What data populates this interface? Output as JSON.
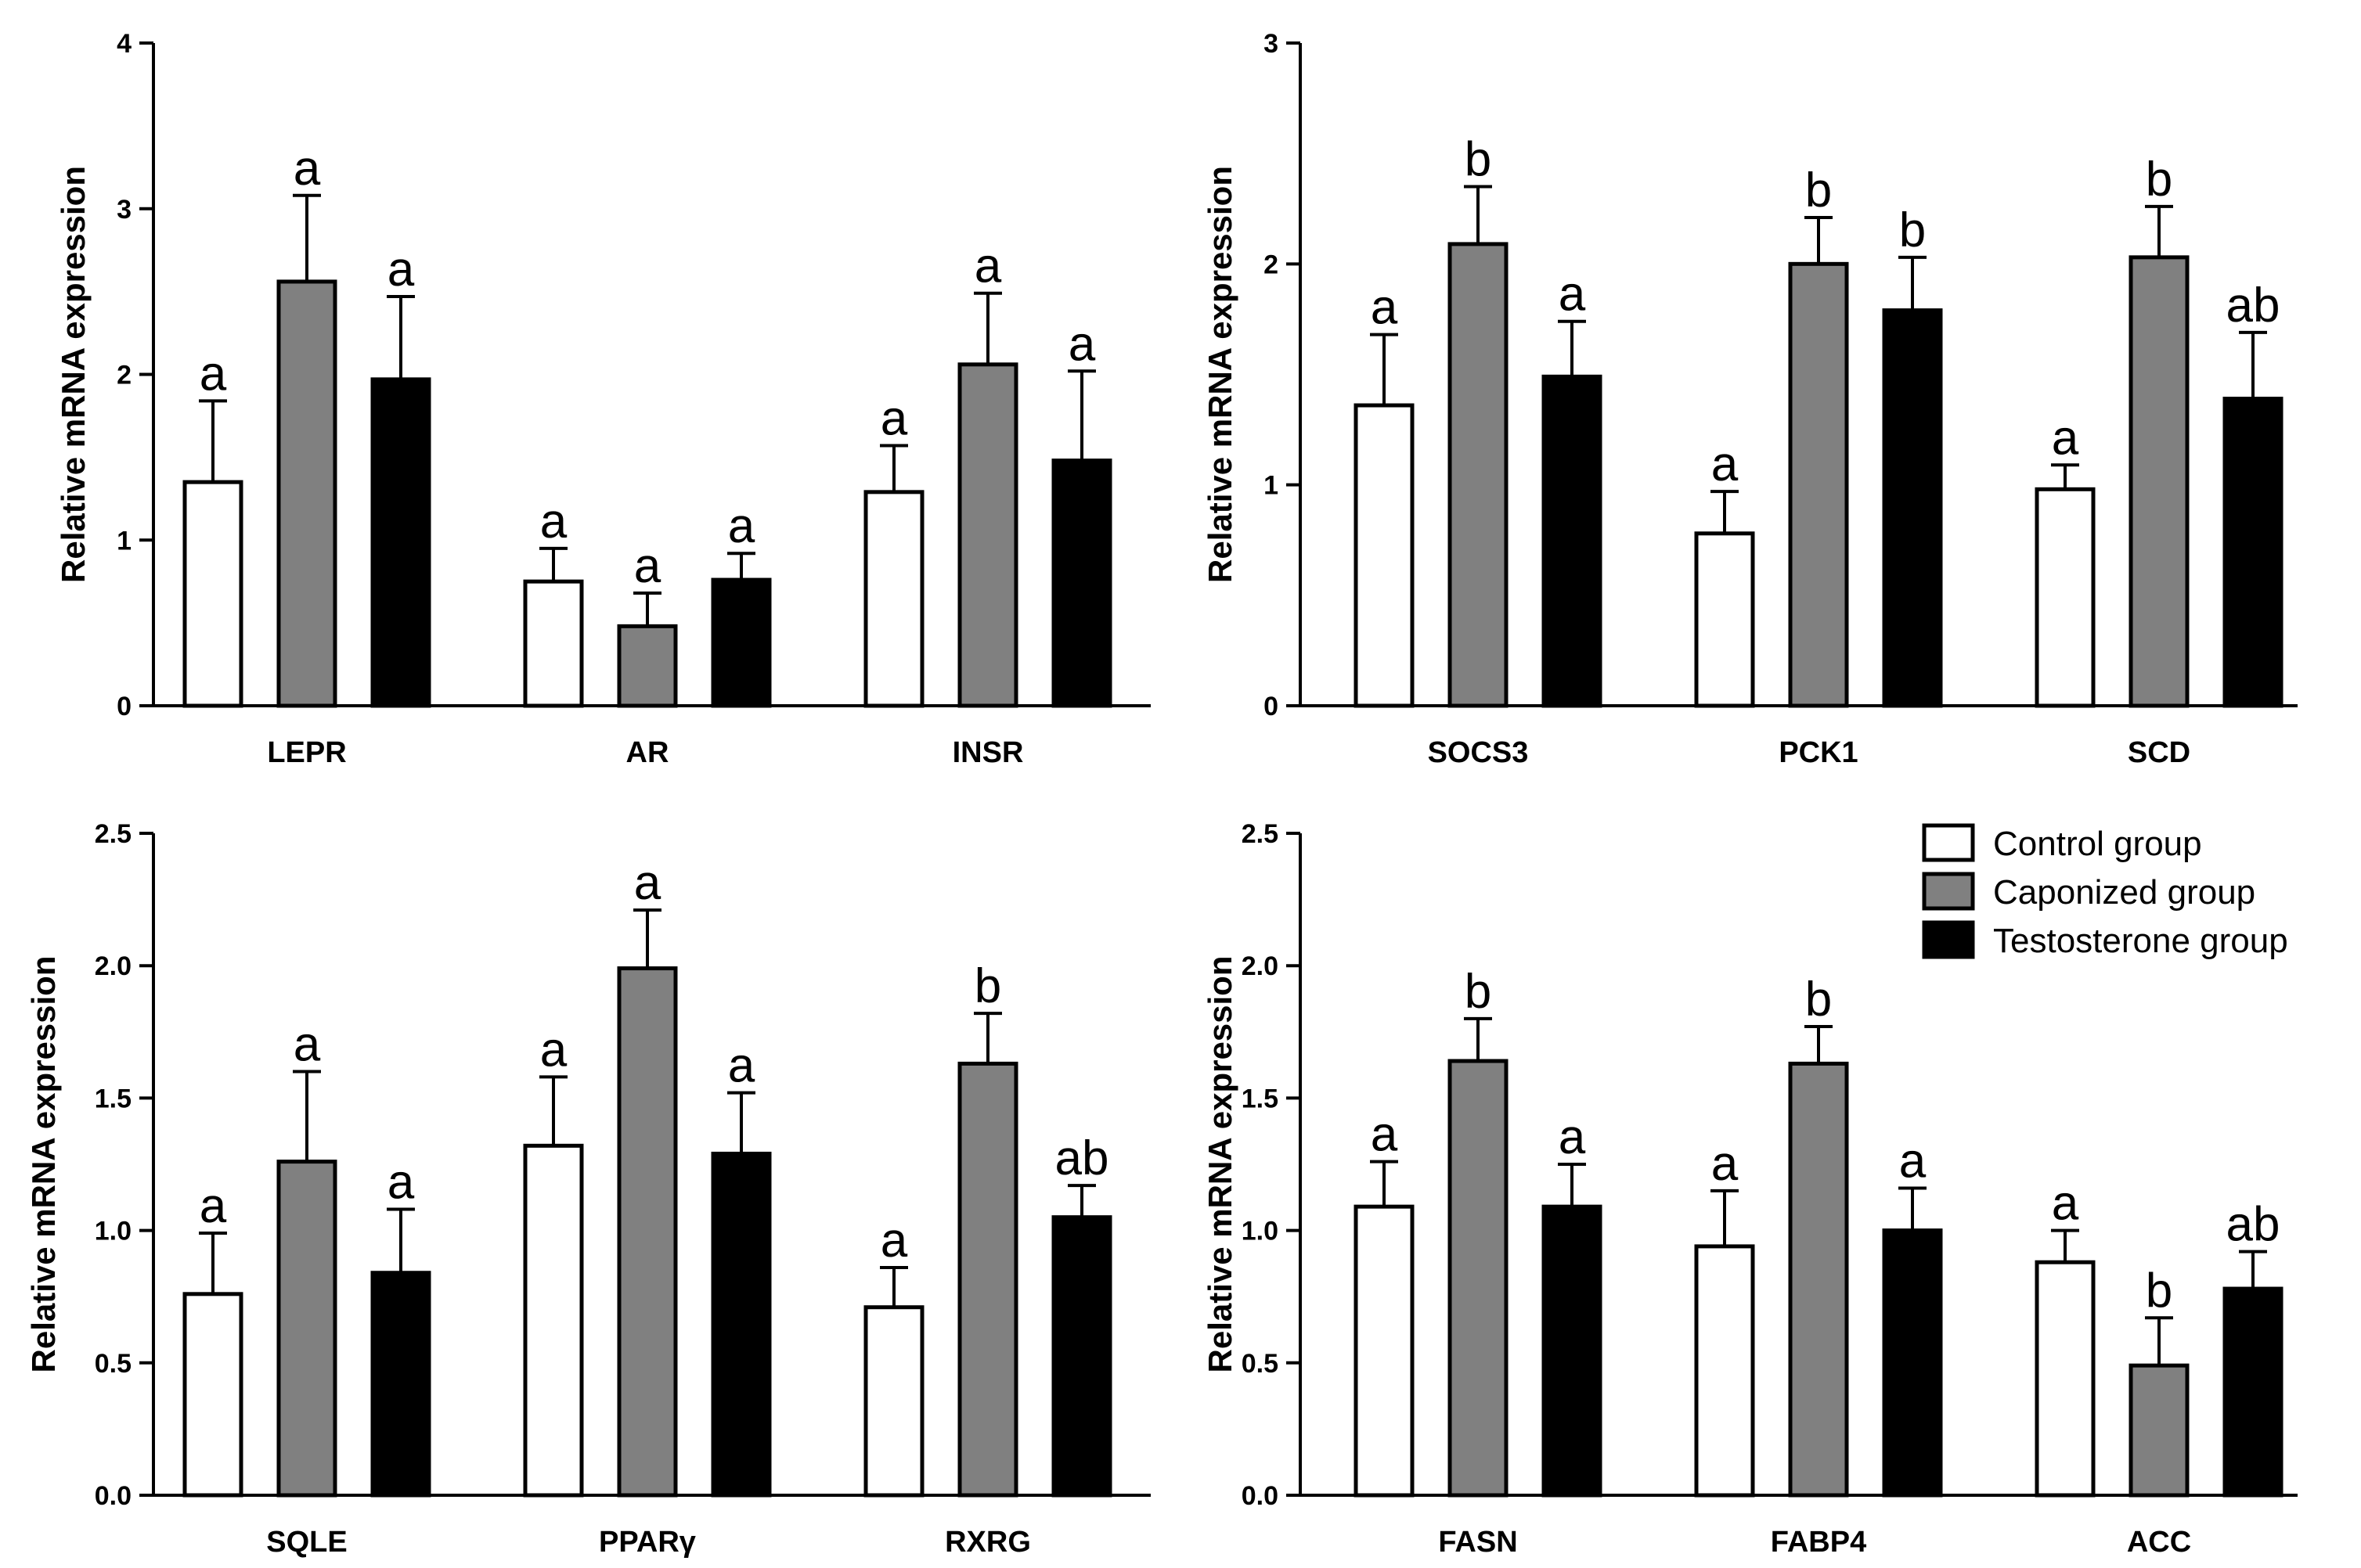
{
  "chart_data": [
    {
      "type": "bar",
      "ylabel": "Relative mRNA expression",
      "ylim": [
        0,
        4
      ],
      "yticks": [
        "0",
        "1",
        "2",
        "3",
        "4"
      ],
      "categories": [
        "LEPR",
        "AR",
        "INSR"
      ],
      "series": [
        {
          "name": "Control group",
          "values": [
            1.35,
            0.75,
            1.29
          ],
          "errors": [
            0.49,
            0.2,
            0.28
          ],
          "letters": [
            "a",
            "a",
            "a"
          ]
        },
        {
          "name": "Caponized group",
          "values": [
            2.56,
            0.48,
            2.06
          ],
          "errors": [
            0.52,
            0.2,
            0.43
          ],
          "letters": [
            "a",
            "a",
            "a"
          ]
        },
        {
          "name": "Testosterone group",
          "values": [
            1.97,
            0.76,
            1.48
          ],
          "errors": [
            0.5,
            0.16,
            0.54
          ],
          "letters": [
            "a",
            "a",
            "a"
          ]
        }
      ]
    },
    {
      "type": "bar",
      "ylabel": "Relative mRNA expression",
      "ylim": [
        0,
        3
      ],
      "yticks": [
        "0",
        "1",
        "2",
        "3"
      ],
      "categories": [
        "SOCS3",
        "PCK1",
        "SCD"
      ],
      "series": [
        {
          "name": "Control group",
          "values": [
            1.36,
            0.78,
            0.98
          ],
          "errors": [
            0.32,
            0.19,
            0.11
          ],
          "letters": [
            "a",
            "a",
            "a"
          ]
        },
        {
          "name": "Caponized group",
          "values": [
            2.09,
            2.0,
            2.03
          ],
          "errors": [
            0.26,
            0.21,
            0.23
          ],
          "letters": [
            "b",
            "b",
            "b"
          ]
        },
        {
          "name": "Testosterone group",
          "values": [
            1.49,
            1.79,
            1.39
          ],
          "errors": [
            0.25,
            0.24,
            0.3
          ],
          "letters": [
            "a",
            "b",
            "ab"
          ]
        }
      ]
    },
    {
      "type": "bar",
      "ylabel": "Relative mRNA expression",
      "ylim": [
        0,
        2.5
      ],
      "yticks": [
        "0.0",
        "0.5",
        "1.0",
        "1.5",
        "2.0",
        "2.5"
      ],
      "categories": [
        "SQLE",
        "PPARγ",
        "RXRG"
      ],
      "series": [
        {
          "name": "Control group",
          "values": [
            0.76,
            1.32,
            0.71
          ],
          "errors": [
            0.23,
            0.26,
            0.15
          ],
          "letters": [
            "a",
            "a",
            "a"
          ]
        },
        {
          "name": "Caponized group",
          "values": [
            1.26,
            1.99,
            1.63
          ],
          "errors": [
            0.34,
            0.22,
            0.19
          ],
          "letters": [
            "a",
            "a",
            "b"
          ]
        },
        {
          "name": "Testosterone group",
          "values": [
            0.84,
            1.29,
            1.05
          ],
          "errors": [
            0.24,
            0.23,
            0.12
          ],
          "letters": [
            "a",
            "a",
            "ab"
          ]
        }
      ]
    },
    {
      "type": "bar",
      "ylabel": "Relative mRNA expression",
      "ylim": [
        0,
        2.5
      ],
      "yticks": [
        "0.0",
        "0.5",
        "1.0",
        "1.5",
        "2.0",
        "2.5"
      ],
      "categories": [
        "FASN",
        "FABP4",
        "ACC"
      ],
      "series": [
        {
          "name": "Control group",
          "values": [
            1.09,
            0.94,
            0.88
          ],
          "errors": [
            0.17,
            0.21,
            0.12
          ],
          "letters": [
            "a",
            "a",
            "a"
          ]
        },
        {
          "name": "Caponized group",
          "values": [
            1.64,
            1.63,
            0.49
          ],
          "errors": [
            0.16,
            0.14,
            0.18
          ],
          "letters": [
            "b",
            "b",
            "b"
          ]
        },
        {
          "name": "Testosterone group",
          "values": [
            1.09,
            1.0,
            0.78
          ],
          "errors": [
            0.16,
            0.16,
            0.14
          ],
          "letters": [
            "a",
            "a",
            "ab"
          ]
        }
      ]
    }
  ],
  "legend": {
    "items": [
      {
        "label": "Control group",
        "color": "#ffffff"
      },
      {
        "label": "Caponized group",
        "color": "#808080"
      },
      {
        "label": "Testosterone group",
        "color": "#000000"
      }
    ]
  },
  "colors": {
    "control": "#ffffff",
    "caponized": "#808080",
    "testosterone": "#000000"
  }
}
